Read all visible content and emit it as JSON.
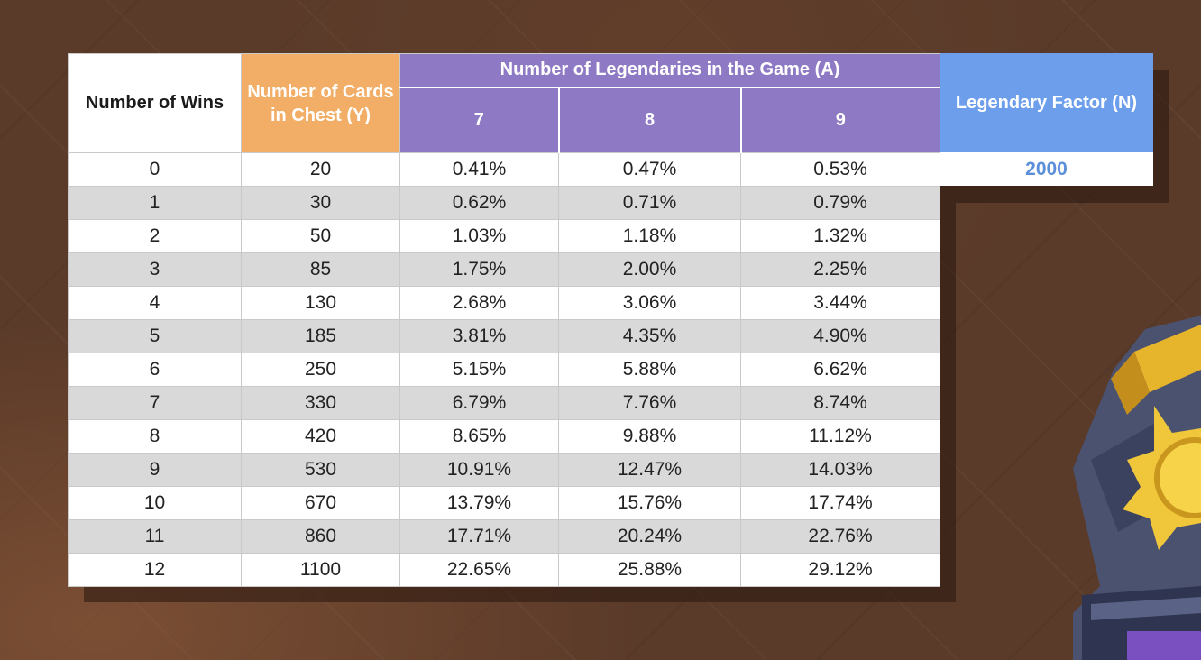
{
  "chart_data": {
    "type": "table",
    "headers": {
      "wins": "Number of Wins",
      "cards": "Number of Cards in Chest (Y)",
      "legendaries": "Number of Legendaries in the Game (A)",
      "legendary_counts": [
        "7",
        "8",
        "9"
      ],
      "factor": "Legendary Factor (N)"
    },
    "factor_value": "2000",
    "rows": [
      {
        "wins": "0",
        "cards": "20",
        "a7": "0.41%",
        "a8": "0.47%",
        "a9": "0.53%"
      },
      {
        "wins": "1",
        "cards": "30",
        "a7": "0.62%",
        "a8": "0.71%",
        "a9": "0.79%"
      },
      {
        "wins": "2",
        "cards": "50",
        "a7": "1.03%",
        "a8": "1.18%",
        "a9": "1.32%"
      },
      {
        "wins": "3",
        "cards": "85",
        "a7": "1.75%",
        "a8": "2.00%",
        "a9": "2.25%"
      },
      {
        "wins": "4",
        "cards": "130",
        "a7": "2.68%",
        "a8": "3.06%",
        "a9": "3.44%"
      },
      {
        "wins": "5",
        "cards": "185",
        "a7": "3.81%",
        "a8": "4.35%",
        "a9": "4.90%"
      },
      {
        "wins": "6",
        "cards": "250",
        "a7": "5.15%",
        "a8": "5.88%",
        "a9": "6.62%"
      },
      {
        "wins": "7",
        "cards": "330",
        "a7": "6.79%",
        "a8": "7.76%",
        "a9": "8.74%"
      },
      {
        "wins": "8",
        "cards": "420",
        "a7": "8.65%",
        "a8": "9.88%",
        "a9": "11.12%"
      },
      {
        "wins": "9",
        "cards": "530",
        "a7": "10.91%",
        "a8": "12.47%",
        "a9": "14.03%"
      },
      {
        "wins": "10",
        "cards": "670",
        "a7": "13.79%",
        "a8": "15.76%",
        "a9": "17.74%"
      },
      {
        "wins": "11",
        "cards": "860",
        "a7": "17.71%",
        "a8": "20.24%",
        "a9": "22.76%"
      },
      {
        "wins": "12",
        "cards": "1100",
        "a7": "22.65%",
        "a8": "25.88%",
        "a9": "29.12%"
      }
    ],
    "colors": {
      "cards_header": "#f2ae66",
      "legendaries_header": "#8e79c4",
      "factor_header": "#6d9eeb",
      "factor_value": "#5b8fd9",
      "stripe": "#d9d9d9"
    }
  },
  "decor": {
    "mascot": "legendary-chest-icon"
  }
}
